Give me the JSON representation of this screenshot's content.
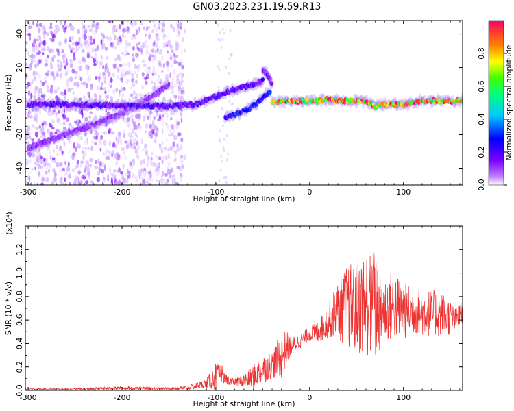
{
  "title": "GN03.2023.231.19.59.R13",
  "chart_data": [
    {
      "type": "heatmap",
      "xlabel": "Height of straight line (km)",
      "ylabel": "Frequency (Hz)",
      "xlim": [
        -303,
        163
      ],
      "ylim": [
        -50,
        48
      ],
      "xticks": [
        -300,
        -200,
        -100,
        0,
        100
      ],
      "yticks": [
        -40,
        -20,
        0,
        20,
        40
      ],
      "colorbar": {
        "label": "Normalized spectral amplitude",
        "range": [
          0.0,
          1.0
        ],
        "ticks": [
          0.0,
          0.2,
          0.4,
          0.6,
          0.8
        ],
        "colormap": "rainbow"
      },
      "ridges": [
        {
          "x": [
            -300,
            -260,
            -220,
            -180,
            -150
          ],
          "y": [
            -28,
            -20,
            -12,
            -2,
            10
          ],
          "amplitude": 0.12
        },
        {
          "x": [
            -300,
            -250,
            -200,
            -150,
            -120,
            -90,
            -75,
            -60,
            -50
          ],
          "y": [
            -2,
            -2,
            -3,
            -3,
            -2,
            5,
            8,
            10,
            12
          ],
          "amplitude": 0.2
        },
        {
          "x": [
            -90,
            -75,
            -60,
            -50,
            -42
          ],
          "y": [
            -10,
            -7,
            -3,
            2,
            6
          ],
          "amplitude": 0.3
        },
        {
          "x": [
            -50,
            -45,
            -40
          ],
          "y": [
            18,
            16,
            10
          ],
          "amplitude": 0.15
        },
        {
          "x": [
            -40,
            -20,
            0,
            20,
            40,
            60,
            70,
            80,
            100,
            120,
            140,
            163
          ],
          "y": [
            0,
            0,
            0,
            1,
            0,
            0,
            -3,
            -2,
            -2,
            0,
            0,
            0
          ],
          "amplitude": 0.85
        }
      ]
    },
    {
      "type": "line",
      "xlabel": "Height of straight line (km)",
      "ylabel": "SNR (10 * v/v)",
      "yunit_label": "(x10⁴)",
      "xlim": [
        -303,
        163
      ],
      "ylim": [
        0,
        1.4
      ],
      "xticks": [
        -300,
        -200,
        -100,
        0,
        100
      ],
      "yticks": [
        0.0,
        0.2,
        0.4,
        0.6,
        0.8,
        1.0,
        1.2
      ],
      "color": "#ee3333",
      "envelope": {
        "x": [
          -303,
          -250,
          -200,
          -150,
          -130,
          -110,
          -100,
          -95,
          -90,
          -80,
          -70,
          -60,
          -50,
          -40,
          -30,
          -25,
          -20,
          -10,
          0,
          10,
          20,
          30,
          40,
          50,
          60,
          70,
          80,
          90,
          100,
          110,
          120,
          130,
          140,
          150,
          155,
          163
        ],
        "y": [
          0.01,
          0.01,
          0.02,
          0.015,
          0.02,
          0.06,
          0.12,
          0.14,
          0.1,
          0.07,
          0.08,
          0.12,
          0.18,
          0.22,
          0.3,
          0.36,
          0.38,
          0.42,
          0.48,
          0.5,
          0.6,
          0.68,
          0.72,
          0.7,
          0.75,
          0.72,
          0.7,
          0.72,
          0.68,
          0.68,
          0.66,
          0.66,
          0.65,
          0.62,
          0.6,
          0.66
        ]
      },
      "noise": {
        "x": [
          -303,
          -250,
          -200,
          -150,
          -130,
          -110,
          -100,
          -95,
          -90,
          -80,
          -70,
          -60,
          -50,
          -40,
          -30,
          -25,
          -20,
          -10,
          0,
          10,
          20,
          30,
          40,
          50,
          60,
          70,
          80,
          90,
          100,
          110,
          120,
          130,
          140,
          150,
          155,
          163
        ],
        "amp": [
          0.005,
          0.008,
          0.015,
          0.01,
          0.02,
          0.04,
          0.12,
          0.06,
          0.05,
          0.03,
          0.06,
          0.1,
          0.12,
          0.12,
          0.2,
          0.15,
          0.08,
          0.06,
          0.06,
          0.1,
          0.15,
          0.25,
          0.35,
          0.4,
          0.45,
          0.5,
          0.3,
          0.3,
          0.25,
          0.2,
          0.2,
          0.2,
          0.2,
          0.15,
          0.1,
          0.12
        ]
      }
    }
  ]
}
